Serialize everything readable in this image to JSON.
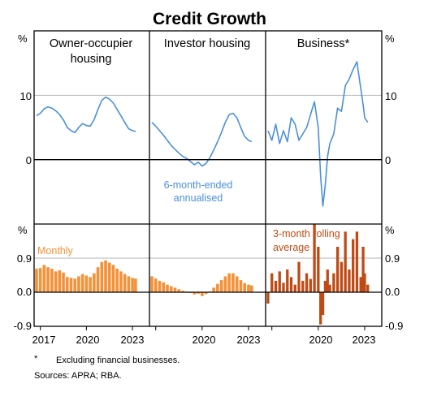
{
  "chart_data": {
    "type": "line",
    "title": "Credit Growth",
    "unit_label": "%",
    "x_ticks": [
      "2017",
      "2020",
      "2023"
    ],
    "top_axis": {
      "ylim": [
        -10,
        20
      ],
      "ticks": [
        "10",
        "0"
      ]
    },
    "bottom_axis": {
      "ylim": [
        -0.9,
        1.8
      ],
      "ticks": [
        "0.9",
        "0.0",
        "-0.9"
      ]
    },
    "colors": {
      "line": "#4a90d9",
      "monthly": "#f4923a",
      "rolling": "#c04a14",
      "grid": "#b4b4b4"
    },
    "panels": [
      {
        "title": "Owner-occupier housing",
        "title_lines": [
          "Owner-occupier",
          "housing"
        ],
        "x_range": [
          2016.7,
          2024.0
        ],
        "x_tick_labels": [
          "2017",
          "2020",
          "2023"
        ],
        "annualised": {
          "x": [
            2016.75,
            2017.0,
            2017.25,
            2017.5,
            2017.75,
            2018.0,
            2018.25,
            2018.5,
            2018.75,
            2019.0,
            2019.25,
            2019.5,
            2019.75,
            2020.0,
            2020.25,
            2020.5,
            2020.75,
            2021.0,
            2021.25,
            2021.5,
            2021.75,
            2022.0,
            2022.25,
            2022.5,
            2022.75,
            2023.0,
            2023.2
          ],
          "y": [
            6.8,
            7.2,
            7.9,
            8.2,
            8.0,
            7.6,
            7.0,
            6.2,
            5.0,
            4.5,
            4.2,
            5.0,
            5.6,
            5.3,
            5.2,
            6.2,
            7.8,
            9.2,
            9.7,
            9.4,
            8.8,
            7.8,
            6.8,
            5.8,
            4.8,
            4.5,
            4.4
          ]
        },
        "monthly": {
          "label": "Monthly",
          "x": [
            2016.75,
            2017.0,
            2017.25,
            2017.5,
            2017.75,
            2018.0,
            2018.25,
            2018.5,
            2018.75,
            2019.0,
            2019.25,
            2019.5,
            2019.75,
            2020.0,
            2020.25,
            2020.5,
            2020.75,
            2021.0,
            2021.25,
            2021.5,
            2021.75,
            2022.0,
            2022.25,
            2022.5,
            2022.75,
            2023.0,
            2023.2
          ],
          "y": [
            0.62,
            0.64,
            0.72,
            0.66,
            0.62,
            0.55,
            0.58,
            0.52,
            0.4,
            0.38,
            0.36,
            0.42,
            0.48,
            0.44,
            0.4,
            0.5,
            0.66,
            0.8,
            0.84,
            0.78,
            0.72,
            0.62,
            0.55,
            0.48,
            0.42,
            0.38,
            0.36
          ]
        }
      },
      {
        "title": "Investor housing",
        "title_lines": [
          "Investor housing"
        ],
        "x_range": [
          2016.7,
          2024.0
        ],
        "x_tick_labels": [
          "",
          "2020",
          "2023"
        ],
        "annotation_lines": [
          "6-month-ended",
          "annualised"
        ],
        "annualised": {
          "x": [
            2016.75,
            2017.0,
            2017.25,
            2017.5,
            2017.75,
            2018.0,
            2018.25,
            2018.5,
            2018.75,
            2019.0,
            2019.25,
            2019.5,
            2019.75,
            2020.0,
            2020.25,
            2020.5,
            2020.75,
            2021.0,
            2021.25,
            2021.5,
            2021.75,
            2022.0,
            2022.25,
            2022.5,
            2022.75,
            2023.0,
            2023.2
          ],
          "y": [
            5.8,
            5.2,
            4.5,
            3.8,
            3.0,
            2.2,
            1.6,
            1.0,
            0.5,
            0.2,
            -0.3,
            -0.8,
            -0.4,
            -1.0,
            -0.6,
            0.3,
            1.5,
            2.8,
            4.2,
            5.8,
            7.0,
            7.2,
            6.5,
            5.0,
            3.6,
            3.0,
            2.8
          ]
        },
        "monthly": {
          "x": [
            2016.75,
            2017.0,
            2017.25,
            2017.5,
            2017.75,
            2018.0,
            2018.25,
            2018.5,
            2018.75,
            2019.0,
            2019.25,
            2019.5,
            2019.75,
            2020.0,
            2020.25,
            2020.5,
            2020.75,
            2021.0,
            2021.25,
            2021.5,
            2021.75,
            2022.0,
            2022.25,
            2022.5,
            2022.75,
            2023.0,
            2023.2
          ],
          "y": [
            0.42,
            0.36,
            0.3,
            0.26,
            0.2,
            0.16,
            0.12,
            0.08,
            0.04,
            0.02,
            -0.02,
            -0.06,
            -0.04,
            -0.1,
            -0.05,
            0.02,
            0.12,
            0.22,
            0.32,
            0.42,
            0.5,
            0.5,
            0.42,
            0.32,
            0.24,
            0.2,
            0.18
          ]
        }
      },
      {
        "title": "Business*",
        "title_lines": [
          "Business*"
        ],
        "x_range": [
          2016.7,
          2024.0
        ],
        "x_tick_labels": [
          "",
          "2020",
          "2023"
        ],
        "annotation_lines": [
          "3-month rolling",
          "average"
        ],
        "annualised": {
          "x": [
            2016.75,
            2017.0,
            2017.25,
            2017.5,
            2017.75,
            2018.0,
            2018.25,
            2018.5,
            2018.75,
            2019.0,
            2019.25,
            2019.5,
            2019.75,
            2020.0,
            2020.15,
            2020.3,
            2020.45,
            2020.6,
            2020.75,
            2021.0,
            2021.25,
            2021.5,
            2021.75,
            2022.0,
            2022.25,
            2022.5,
            2022.75,
            2022.9,
            2023.0,
            2023.2
          ],
          "y": [
            4.5,
            3.0,
            5.5,
            2.5,
            4.5,
            2.8,
            6.5,
            5.5,
            3.0,
            4.0,
            5.0,
            7.0,
            9.0,
            5.0,
            -2.5,
            -7.2,
            -4.0,
            0.5,
            2.5,
            4.0,
            8.0,
            7.5,
            11.5,
            12.5,
            14.0,
            15.2,
            11.0,
            8.5,
            6.5,
            5.8
          ]
        },
        "monthly": {
          "x": [
            2016.75,
            2017.0,
            2017.25,
            2017.5,
            2017.75,
            2018.0,
            2018.25,
            2018.5,
            2018.75,
            2019.0,
            2019.25,
            2019.5,
            2019.75,
            2020.0,
            2020.15,
            2020.3,
            2020.45,
            2020.6,
            2020.75,
            2021.0,
            2021.25,
            2021.5,
            2021.75,
            2022.0,
            2022.25,
            2022.5,
            2022.75,
            2022.9,
            2023.0,
            2023.2
          ],
          "y": [
            -0.3,
            0.5,
            0.3,
            0.55,
            0.25,
            0.6,
            0.4,
            0.2,
            0.8,
            0.3,
            0.5,
            0.35,
            1.8,
            1.2,
            -0.85,
            -0.6,
            0.3,
            0.6,
            0.2,
            0.5,
            1.2,
            0.8,
            1.6,
            0.6,
            1.4,
            1.6,
            0.4,
            1.2,
            0.5,
            0.2
          ]
        }
      }
    ],
    "footnote": "Excluding financial businesses.",
    "footnote_marker": "*",
    "sources": "Sources: APRA; RBA."
  }
}
